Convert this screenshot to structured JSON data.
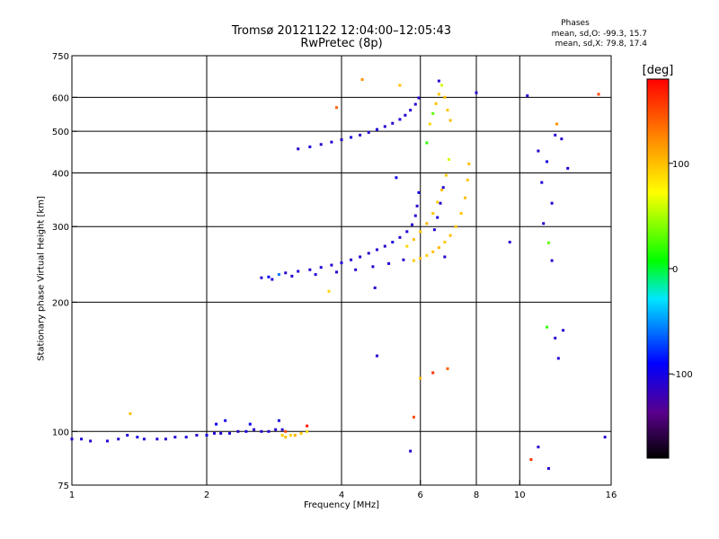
{
  "chart_data": {
    "type": "scatter",
    "title": "Tromsø 20121122 12:04:00–12:05:43",
    "subtitle": "RwPretec (8p)",
    "xlabel": "Frequency [MHz]",
    "ylabel": "Stationary phase Virtual Height [km]",
    "x_scale": "log",
    "y_scale": "log",
    "xlim": [
      1,
      16
    ],
    "ylim": [
      75,
      750
    ],
    "x_ticks": [
      "1",
      "2",
      "4",
      "6",
      "8",
      "10",
      "16"
    ],
    "x_tick_values": [
      1,
      2,
      4,
      6,
      8,
      10,
      16
    ],
    "y_ticks": [
      "75",
      "100",
      "200",
      "300",
      "400",
      "500",
      "600",
      "750"
    ],
    "y_tick_values": [
      75,
      100,
      200,
      300,
      400,
      500,
      600,
      750
    ],
    "grid": true,
    "colorbar": {
      "label": "[deg]",
      "range": [
        -180,
        180
      ],
      "ticks": [
        "100",
        "0",
        "-100"
      ],
      "tick_values": [
        100,
        0,
        -100
      ]
    },
    "phase_stats": {
      "title": "Phases",
      "o_line": "mean, sd,O: -99.3, 15.7",
      "x_line": "mean, sd,X:  79.8, 17.4"
    },
    "series": [
      {
        "points": [
          {
            "f": 1.0,
            "h": 96,
            "p": -110
          },
          {
            "f": 1.05,
            "h": 96,
            "p": -105
          },
          {
            "f": 1.1,
            "h": 95,
            "p": -112
          },
          {
            "f": 1.2,
            "h": 95,
            "p": -108
          },
          {
            "f": 1.27,
            "h": 96,
            "p": -110
          },
          {
            "f": 1.33,
            "h": 98,
            "p": -105
          },
          {
            "f": 1.4,
            "h": 97,
            "p": -102
          },
          {
            "f": 1.45,
            "h": 96,
            "p": -110
          },
          {
            "f": 1.55,
            "h": 96,
            "p": -108
          },
          {
            "f": 1.62,
            "h": 96,
            "p": -111
          },
          {
            "f": 1.7,
            "h": 97,
            "p": -106
          },
          {
            "f": 1.8,
            "h": 97,
            "p": -104
          },
          {
            "f": 1.9,
            "h": 98,
            "p": -110
          },
          {
            "f": 2.0,
            "h": 98,
            "p": -102
          },
          {
            "f": 2.08,
            "h": 99,
            "p": -108
          },
          {
            "f": 2.15,
            "h": 99,
            "p": -110
          },
          {
            "f": 2.25,
            "h": 99,
            "p": -105
          },
          {
            "f": 2.35,
            "h": 100,
            "p": -112
          },
          {
            "f": 2.45,
            "h": 100,
            "p": -104
          },
          {
            "f": 2.55,
            "h": 101,
            "p": -110
          },
          {
            "f": 2.65,
            "h": 100,
            "p": -108
          },
          {
            "f": 2.75,
            "h": 100,
            "p": -106
          },
          {
            "f": 2.85,
            "h": 101,
            "p": -110
          },
          {
            "f": 2.95,
            "h": 101,
            "p": -112
          },
          {
            "f": 2.1,
            "h": 104,
            "p": -95
          },
          {
            "f": 2.2,
            "h": 106,
            "p": -100
          },
          {
            "f": 2.5,
            "h": 104,
            "p": -98
          },
          {
            "f": 2.9,
            "h": 106,
            "p": -104
          },
          {
            "f": 1.35,
            "h": 110,
            "p": 100
          },
          {
            "f": 2.95,
            "h": 98,
            "p": 95
          },
          {
            "f": 3.0,
            "h": 97,
            "p": 100
          },
          {
            "f": 3.08,
            "h": 98,
            "p": 92
          },
          {
            "f": 3.15,
            "h": 98,
            "p": 105
          },
          {
            "f": 3.25,
            "h": 99,
            "p": 98
          },
          {
            "f": 3.35,
            "h": 100,
            "p": 88
          },
          {
            "f": 2.65,
            "h": 228,
            "p": -110
          },
          {
            "f": 2.75,
            "h": 229,
            "p": -90
          },
          {
            "f": 2.9,
            "h": 232,
            "p": -60
          },
          {
            "f": 3.0,
            "h": 234,
            "p": -110
          },
          {
            "f": 3.2,
            "h": 236,
            "p": -108
          },
          {
            "f": 3.4,
            "h": 238,
            "p": -112
          },
          {
            "f": 3.6,
            "h": 241,
            "p": -105
          },
          {
            "f": 3.8,
            "h": 244,
            "p": -110
          },
          {
            "f": 4.0,
            "h": 247,
            "p": -106
          },
          {
            "f": 4.2,
            "h": 251,
            "p": -110
          },
          {
            "f": 4.4,
            "h": 255,
            "p": -104
          },
          {
            "f": 4.6,
            "h": 260,
            "p": -110
          },
          {
            "f": 4.8,
            "h": 265,
            "p": -108
          },
          {
            "f": 5.0,
            "h": 270,
            "p": -112
          },
          {
            "f": 5.2,
            "h": 276,
            "p": -106
          },
          {
            "f": 5.4,
            "h": 283,
            "p": -110
          },
          {
            "f": 5.6,
            "h": 292,
            "p": -104
          },
          {
            "f": 5.75,
            "h": 303,
            "p": -110
          },
          {
            "f": 5.85,
            "h": 318,
            "p": -108
          },
          {
            "f": 5.9,
            "h": 335,
            "p": -112
          },
          {
            "f": 5.95,
            "h": 360,
            "p": -100
          },
          {
            "f": 2.8,
            "h": 226,
            "p": -108
          },
          {
            "f": 3.1,
            "h": 230,
            "p": -112
          },
          {
            "f": 3.5,
            "h": 232,
            "p": -110
          },
          {
            "f": 3.9,
            "h": 235,
            "p": -106
          },
          {
            "f": 4.3,
            "h": 238,
            "p": -110
          },
          {
            "f": 4.7,
            "h": 242,
            "p": -108
          },
          {
            "f": 5.1,
            "h": 246,
            "p": -104
          },
          {
            "f": 5.5,
            "h": 251,
            "p": -110
          },
          {
            "f": 5.8,
            "h": 250,
            "p": 95
          },
          {
            "f": 6.0,
            "h": 253,
            "p": 100
          },
          {
            "f": 6.2,
            "h": 257,
            "p": 92
          },
          {
            "f": 6.4,
            "h": 262,
            "p": 98
          },
          {
            "f": 6.6,
            "h": 268,
            "p": 104
          },
          {
            "f": 6.8,
            "h": 276,
            "p": 96
          },
          {
            "f": 7.0,
            "h": 286,
            "p": 100
          },
          {
            "f": 7.2,
            "h": 300,
            "p": 94
          },
          {
            "f": 7.4,
            "h": 322,
            "p": 98
          },
          {
            "f": 7.55,
            "h": 350,
            "p": 102
          },
          {
            "f": 7.65,
            "h": 385,
            "p": 96
          },
          {
            "f": 7.7,
            "h": 420,
            "p": 100
          },
          {
            "f": 5.6,
            "h": 270,
            "p": 90
          },
          {
            "f": 5.8,
            "h": 280,
            "p": 100
          },
          {
            "f": 6.0,
            "h": 292,
            "p": 95
          },
          {
            "f": 6.2,
            "h": 305,
            "p": 105
          },
          {
            "f": 6.4,
            "h": 322,
            "p": 98
          },
          {
            "f": 6.55,
            "h": 342,
            "p": 92
          },
          {
            "f": 6.7,
            "h": 365,
            "p": 100
          },
          {
            "f": 6.85,
            "h": 395,
            "p": 96
          },
          {
            "f": 6.95,
            "h": 430,
            "p": 60
          },
          {
            "f": 6.45,
            "h": 295,
            "p": -110
          },
          {
            "f": 6.55,
            "h": 315,
            "p": -105
          },
          {
            "f": 6.65,
            "h": 340,
            "p": -110
          },
          {
            "f": 6.75,
            "h": 370,
            "p": -108
          },
          {
            "f": 6.8,
            "h": 255,
            "p": -110
          },
          {
            "f": 3.2,
            "h": 455,
            "p": -110
          },
          {
            "f": 3.4,
            "h": 460,
            "p": -106
          },
          {
            "f": 3.6,
            "h": 466,
            "p": -110
          },
          {
            "f": 3.8,
            "h": 472,
            "p": -108
          },
          {
            "f": 4.0,
            "h": 478,
            "p": -112
          },
          {
            "f": 4.2,
            "h": 484,
            "p": -104
          },
          {
            "f": 4.4,
            "h": 490,
            "p": -110
          },
          {
            "f": 4.6,
            "h": 497,
            "p": -108
          },
          {
            "f": 4.8,
            "h": 505,
            "p": -106
          },
          {
            "f": 5.0,
            "h": 513,
            "p": -110
          },
          {
            "f": 5.2,
            "h": 522,
            "p": -112
          },
          {
            "f": 5.4,
            "h": 533,
            "p": -104
          },
          {
            "f": 5.55,
            "h": 545,
            "p": -110
          },
          {
            "f": 5.7,
            "h": 560,
            "p": -108
          },
          {
            "f": 5.85,
            "h": 578,
            "p": -106
          },
          {
            "f": 5.95,
            "h": 598,
            "p": -110
          },
          {
            "f": 6.3,
            "h": 520,
            "p": 90
          },
          {
            "f": 6.4,
            "h": 550,
            "p": 30
          },
          {
            "f": 6.5,
            "h": 580,
            "p": 100
          },
          {
            "f": 6.6,
            "h": 610,
            "p": 95
          },
          {
            "f": 6.7,
            "h": 640,
            "p": 60
          },
          {
            "f": 6.8,
            "h": 600,
            "p": 100
          },
          {
            "f": 6.9,
            "h": 560,
            "p": 98
          },
          {
            "f": 7.0,
            "h": 530,
            "p": 102
          },
          {
            "f": 6.6,
            "h": 655,
            "p": -110
          },
          {
            "f": 6.2,
            "h": 470,
            "p": 20
          },
          {
            "f": 4.45,
            "h": 660,
            "p": 120
          },
          {
            "f": 3.9,
            "h": 568,
            "p": 140
          },
          {
            "f": 5.4,
            "h": 640,
            "p": 100
          },
          {
            "f": 5.3,
            "h": 390,
            "p": -100
          },
          {
            "f": 3.0,
            "h": 100,
            "p": 150
          },
          {
            "f": 3.35,
            "h": 103,
            "p": 170
          },
          {
            "f": 3.75,
            "h": 212,
            "p": 90
          },
          {
            "f": 4.75,
            "h": 216,
            "p": -110
          },
          {
            "f": 4.8,
            "h": 150,
            "p": -110
          },
          {
            "f": 5.8,
            "h": 108,
            "p": 150
          },
          {
            "f": 5.7,
            "h": 90,
            "p": -110
          },
          {
            "f": 6.0,
            "h": 133,
            "p": 100
          },
          {
            "f": 6.4,
            "h": 137,
            "p": 160
          },
          {
            "f": 6.9,
            "h": 140,
            "p": 140
          },
          {
            "f": 9.5,
            "h": 276,
            "p": -110
          },
          {
            "f": 10.4,
            "h": 605,
            "p": -110
          },
          {
            "f": 11.0,
            "h": 450,
            "p": -110
          },
          {
            "f": 11.2,
            "h": 380,
            "p": -105
          },
          {
            "f": 11.5,
            "h": 425,
            "p": -100
          },
          {
            "f": 11.8,
            "h": 340,
            "p": -110
          },
          {
            "f": 12.0,
            "h": 490,
            "p": -108
          },
          {
            "f": 12.1,
            "h": 520,
            "p": 120
          },
          {
            "f": 12.4,
            "h": 480,
            "p": -110
          },
          {
            "f": 12.8,
            "h": 410,
            "p": -106
          },
          {
            "f": 11.3,
            "h": 305,
            "p": -110
          },
          {
            "f": 11.6,
            "h": 275,
            "p": 30
          },
          {
            "f": 11.8,
            "h": 250,
            "p": -110
          },
          {
            "f": 11.5,
            "h": 175,
            "p": 20
          },
          {
            "f": 12.0,
            "h": 165,
            "p": -110
          },
          {
            "f": 12.2,
            "h": 148,
            "p": -108
          },
          {
            "f": 12.5,
            "h": 172,
            "p": -110
          },
          {
            "f": 11.0,
            "h": 92,
            "p": -110
          },
          {
            "f": 10.6,
            "h": 86,
            "p": 160
          },
          {
            "f": 11.6,
            "h": 82,
            "p": -110
          },
          {
            "f": 15.0,
            "h": 610,
            "p": 150
          },
          {
            "f": 15.5,
            "h": 97,
            "p": -110
          },
          {
            "f": 8.0,
            "h": 615,
            "p": -110
          }
        ]
      }
    ]
  }
}
